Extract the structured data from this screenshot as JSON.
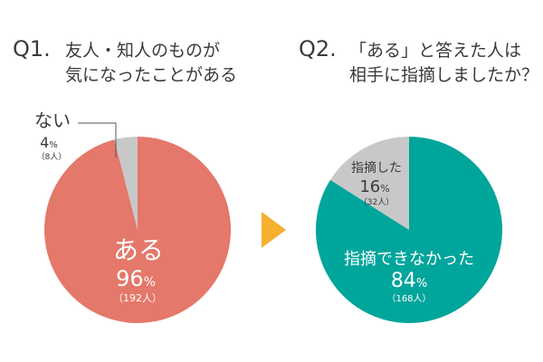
{
  "chart_data": [
    {
      "type": "pie",
      "title_prefix": "Q1.",
      "title_lines": [
        "友人・知人のものが",
        "気になったことがある"
      ],
      "slices": [
        {
          "label": "ある",
          "percent": 96,
          "percent_unit": "%",
          "count": "（192人）",
          "value": 192,
          "color": "#e4786a"
        },
        {
          "label": "ない",
          "percent": 4,
          "percent_unit": "%",
          "count": "（8人）",
          "value": 8,
          "color": "#c8c8c8"
        }
      ]
    },
    {
      "type": "pie",
      "title_prefix": "Q2.",
      "title_lines": [
        "「ある」と答えた人は",
        "相手に指摘しましたか？"
      ],
      "slices": [
        {
          "label": "指摘できなかった",
          "percent": 84,
          "percent_unit": "%",
          "count": "（168人）",
          "value": 168,
          "color": "#00a59b"
        },
        {
          "label": "指摘した",
          "percent": 16,
          "percent_unit": "%",
          "count": "（32人）",
          "value": 32,
          "color": "#c8c8c8"
        }
      ]
    }
  ],
  "colors": {
    "text": "#3a3a3a",
    "arrow": "#f5b030",
    "leader": "#555555"
  }
}
